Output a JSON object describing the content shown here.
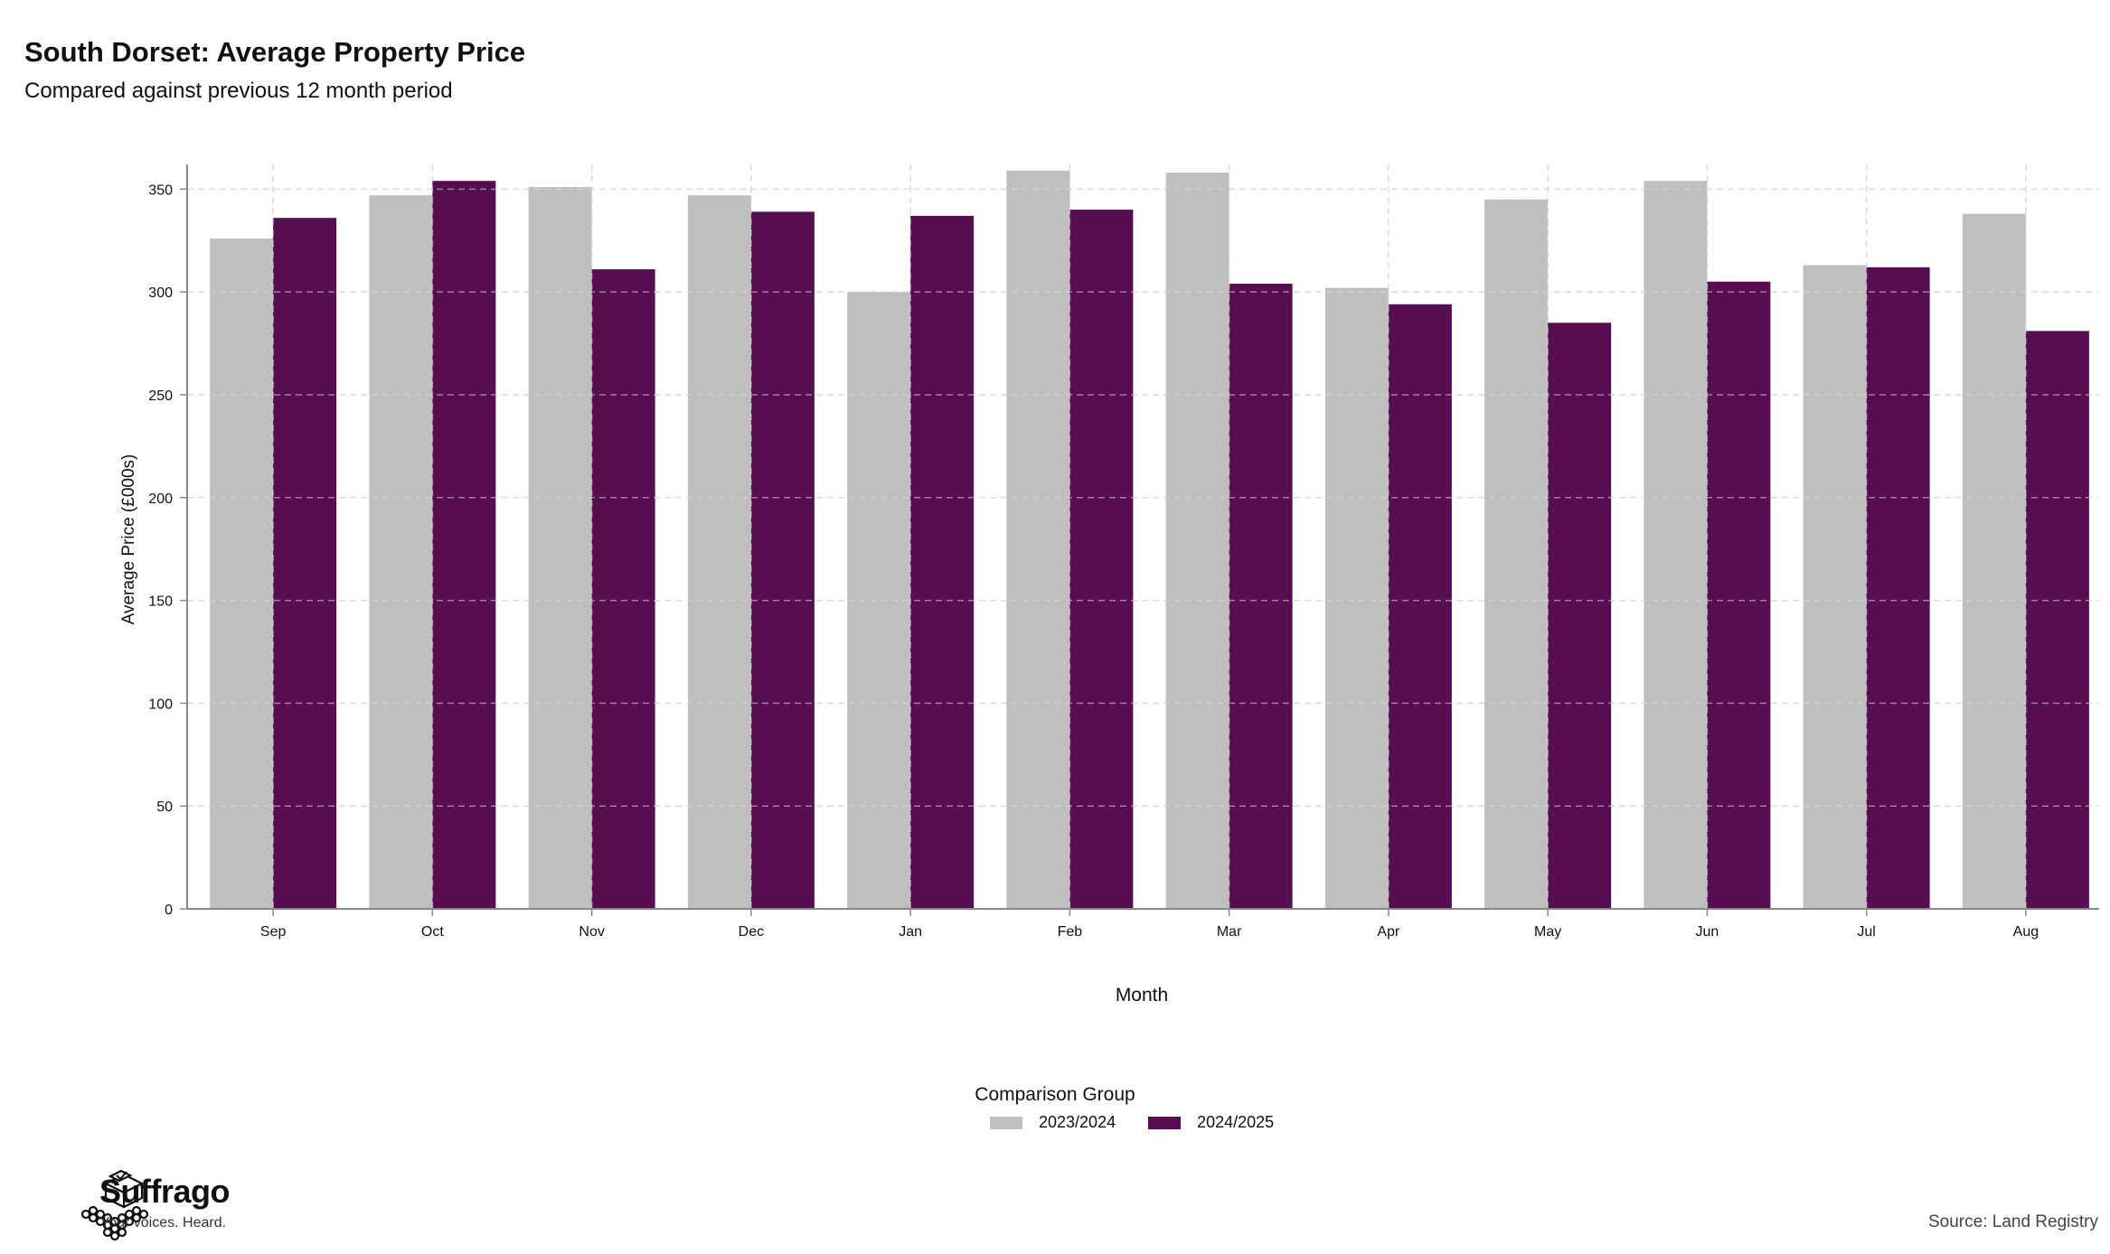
{
  "header": {
    "title": "South Dorset: Average Property Price",
    "subtitle": "Compared against previous 12 month period"
  },
  "footer": {
    "source": "Source: Land Registry",
    "brand_name": "Suffrago",
    "brand_tagline": "Your voices. Heard."
  },
  "legend": {
    "title": "Comparison Group"
  },
  "colors": {
    "previous": "#bfbfbf",
    "current": "#560d52",
    "grid": "#dcdcdc",
    "axis": "#888888"
  },
  "chart_data": {
    "type": "bar",
    "title": "South Dorset: Average Property Price",
    "subtitle": "Compared against previous 12 month period",
    "xlabel": "Month",
    "ylabel": "Average Price (£000s)",
    "ylim": [
      0,
      362
    ],
    "yticks": [
      0,
      50,
      100,
      150,
      200,
      250,
      300,
      350
    ],
    "grid": true,
    "legend_position": "bottom",
    "categories": [
      "Sep",
      "Oct",
      "Nov",
      "Dec",
      "Jan",
      "Feb",
      "Mar",
      "Apr",
      "May",
      "Jun",
      "Jul",
      "Aug"
    ],
    "series": [
      {
        "name": "2023/2024",
        "color": "#bfbfbf",
        "values": [
          326,
          347,
          351,
          347,
          300,
          359,
          358,
          302,
          345,
          354,
          313,
          338
        ]
      },
      {
        "name": "2024/2025",
        "color": "#560d52",
        "values": [
          336,
          354,
          311,
          339,
          337,
          340,
          304,
          294,
          285,
          305,
          312,
          281
        ]
      }
    ]
  }
}
